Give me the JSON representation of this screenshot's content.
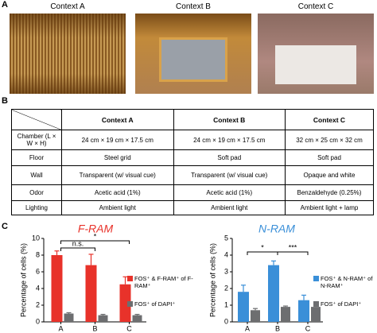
{
  "panels": {
    "a": "A",
    "b": "B",
    "c": "C"
  },
  "photos": [
    {
      "title": "Context A"
    },
    {
      "title": "Context B"
    },
    {
      "title": "Context C"
    }
  ],
  "table": {
    "header": [
      "Context A",
      "Context B",
      "Context C"
    ],
    "rows": [
      [
        "Chamber (L × W × H)",
        "24 cm × 19 cm × 17.5 cm",
        "24 cm × 19 cm × 17.5 cm",
        "32 cm × 25 cm × 32 cm"
      ],
      [
        "Floor",
        "Steel grid",
        "Soft pad",
        "Soft pad"
      ],
      [
        "Wall",
        "Transparent (w/ visual cue)",
        "Transparent (w/ visual cue)",
        "Opaque and white"
      ],
      [
        "Odor",
        "Acetic acid (1%)",
        "Acetic acid (1%)",
        "Benzaldehyde (0.25%)"
      ],
      [
        "Lighting",
        "Ambient light",
        "Ambient light",
        "Ambient light + lamp"
      ]
    ]
  },
  "chart_data": [
    {
      "type": "bar",
      "title": "F-RAM",
      "title_color": "#e8322a",
      "y_label": "Percentage of cells (%)",
      "categories": [
        "A",
        "B",
        "C"
      ],
      "series": [
        {
          "name": "FOS⁺ & F-RAM⁺ of F-RAM⁺",
          "color": "#e8322a",
          "values": [
            8.0,
            6.8,
            4.5
          ],
          "errors": [
            0.5,
            1.3,
            0.9
          ]
        },
        {
          "name": "FOS⁺ of DAPI⁺",
          "color": "#6d6e70",
          "values": [
            1.0,
            0.8,
            0.8
          ],
          "errors": [
            0.1,
            0.1,
            0.1
          ]
        }
      ],
      "ylim": [
        0,
        10
      ],
      "yticks": [
        0,
        2,
        4,
        6,
        8,
        10
      ],
      "annotations": [
        {
          "text": "n.s."
        },
        {
          "text": "*"
        }
      ]
    },
    {
      "type": "bar",
      "title": "N-RAM",
      "title_color": "#3a8fd8",
      "y_label": "Percentage of cells (%)",
      "categories": [
        "A",
        "B",
        "C"
      ],
      "series": [
        {
          "name": "FOS⁺ & N-RAM⁺ of N-RAM⁺",
          "color": "#3a8fd8",
          "values": [
            1.8,
            3.4,
            1.3
          ],
          "errors": [
            0.4,
            0.25,
            0.3
          ]
        },
        {
          "name": "FOS⁺ of DAPI⁺",
          "color": "#6d6e70",
          "values": [
            0.7,
            0.9,
            0.9
          ],
          "errors": [
            0.1,
            0.05,
            0.05
          ]
        }
      ],
      "ylim": [
        0,
        5
      ],
      "yticks": [
        0,
        1,
        2,
        3,
        4,
        5
      ],
      "annotations": [
        {
          "text": "*"
        },
        {
          "text": "***"
        }
      ]
    }
  ]
}
